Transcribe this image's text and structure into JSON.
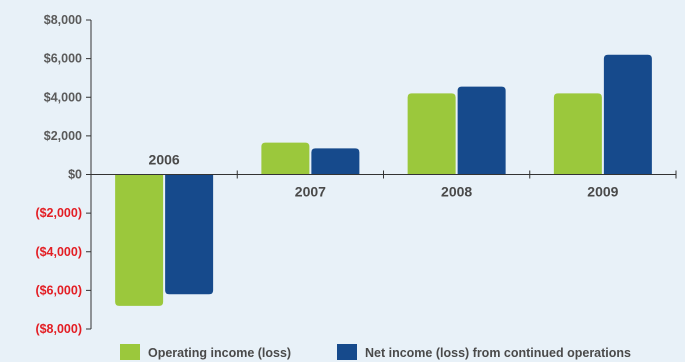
{
  "chart_data": {
    "type": "bar",
    "title": "",
    "xlabel": "",
    "ylabel": "",
    "categories": [
      "2006",
      "2007",
      "2008",
      "2009"
    ],
    "series": [
      {
        "name": "Operating income (loss)",
        "color": "#9bc83c",
        "values": [
          -6800,
          1650,
          4200,
          4200
        ]
      },
      {
        "name": "Net income (loss) from continued operations",
        "color": "#164a8c",
        "values": [
          -6200,
          1350,
          4550,
          6200
        ]
      }
    ],
    "ylim": [
      -8000,
      8000
    ],
    "yticks": [
      8000,
      6000,
      4000,
      2000,
      0,
      -2000,
      -4000,
      -6000,
      -8000
    ],
    "ytick_labels": [
      "$8,000",
      "$6,000",
      "$4,000",
      "$2,000",
      "$0",
      "($2,000)",
      "($4,000)",
      "($6,000)",
      "($8,000)"
    ],
    "tick_colors": {
      "positive": "#5a5a5a",
      "negative": "#e31e24"
    },
    "grid": false,
    "legend_position": "bottom"
  }
}
